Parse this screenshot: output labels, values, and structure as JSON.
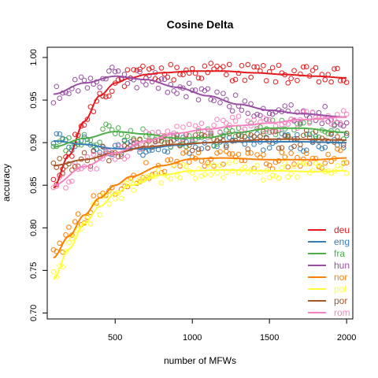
{
  "chart_data": {
    "type": "scatter",
    "title": "Cosine Delta",
    "xlabel": "number of MFWs",
    "ylabel": "accuracy",
    "xlim": [
      100,
      2000
    ],
    "ylim": [
      0.7,
      1.0
    ],
    "x_ticks": [
      500,
      1000,
      1500,
      2000
    ],
    "y_ticks": [
      0.7,
      0.75,
      0.8,
      0.85,
      0.9,
      0.95,
      1.0
    ],
    "x_tick_labels": [
      "500",
      "1000",
      "1500",
      "2000"
    ],
    "y_tick_labels": [
      "0.70",
      "0.75",
      "0.80",
      "0.85",
      "0.90",
      "0.95",
      "1.00"
    ],
    "legend_position": "bottom-right",
    "smoothed_curves": true,
    "grid": false,
    "series": [
      {
        "name": "deu",
        "color": "#E41A1C",
        "curve_x": [
          100,
          200,
          300,
          400,
          500,
          600,
          700,
          800,
          1000,
          1200,
          1400,
          1600,
          1800,
          2000
        ],
        "curve_y": [
          0.847,
          0.885,
          0.925,
          0.955,
          0.97,
          0.976,
          0.98,
          0.982,
          0.984,
          0.984,
          0.982,
          0.98,
          0.978,
          0.976
        ]
      },
      {
        "name": "eng",
        "color": "#377EB8",
        "curve_x": [
          100,
          300,
          500,
          700,
          900,
          1100,
          1300,
          1500,
          1700,
          2000
        ],
        "curve_y": [
          0.902,
          0.898,
          0.893,
          0.893,
          0.897,
          0.9,
          0.901,
          0.901,
          0.901,
          0.9
        ]
      },
      {
        "name": "fra",
        "color": "#4DAF4A",
        "curve_x": [
          100,
          300,
          500,
          700,
          900,
          1100,
          1300,
          1500,
          1700,
          2000
        ],
        "curve_y": [
          0.895,
          0.905,
          0.913,
          0.91,
          0.905,
          0.906,
          0.912,
          0.917,
          0.917,
          0.912
        ]
      },
      {
        "name": "hun",
        "color": "#984EA3",
        "curve_x": [
          100,
          300,
          500,
          700,
          900,
          1100,
          1300,
          1500,
          1700,
          2000
        ],
        "curve_y": [
          0.957,
          0.97,
          0.978,
          0.974,
          0.965,
          0.955,
          0.945,
          0.938,
          0.934,
          0.93
        ]
      },
      {
        "name": "nor",
        "color": "#FF7F00",
        "curve_x": [
          100,
          200,
          300,
          400,
          500,
          600,
          800,
          1000,
          1200,
          1500,
          1800,
          2000
        ],
        "curve_y": [
          0.765,
          0.79,
          0.815,
          0.835,
          0.85,
          0.86,
          0.873,
          0.881,
          0.882,
          0.88,
          0.88,
          0.882
        ]
      },
      {
        "name": "pol",
        "color": "#FFFF33",
        "curve_x": [
          100,
          200,
          300,
          400,
          500,
          600,
          800,
          1000,
          1200,
          1500,
          1800,
          2000
        ],
        "curve_y": [
          0.74,
          0.775,
          0.805,
          0.825,
          0.84,
          0.85,
          0.862,
          0.867,
          0.868,
          0.867,
          0.866,
          0.867
        ]
      },
      {
        "name": "por",
        "color": "#A65628",
        "curve_x": [
          100,
          300,
          500,
          700,
          900,
          1100,
          1300,
          1500,
          1700,
          2000
        ],
        "curve_y": [
          0.873,
          0.88,
          0.888,
          0.895,
          0.898,
          0.9,
          0.902,
          0.904,
          0.904,
          0.903
        ]
      },
      {
        "name": "rom",
        "color": "#F781BF",
        "curve_x": [
          100,
          300,
          500,
          700,
          900,
          1100,
          1300,
          1500,
          1700,
          2000
        ],
        "curve_y": [
          0.85,
          0.872,
          0.888,
          0.902,
          0.911,
          0.916,
          0.92,
          0.923,
          0.927,
          0.93
        ]
      }
    ]
  }
}
